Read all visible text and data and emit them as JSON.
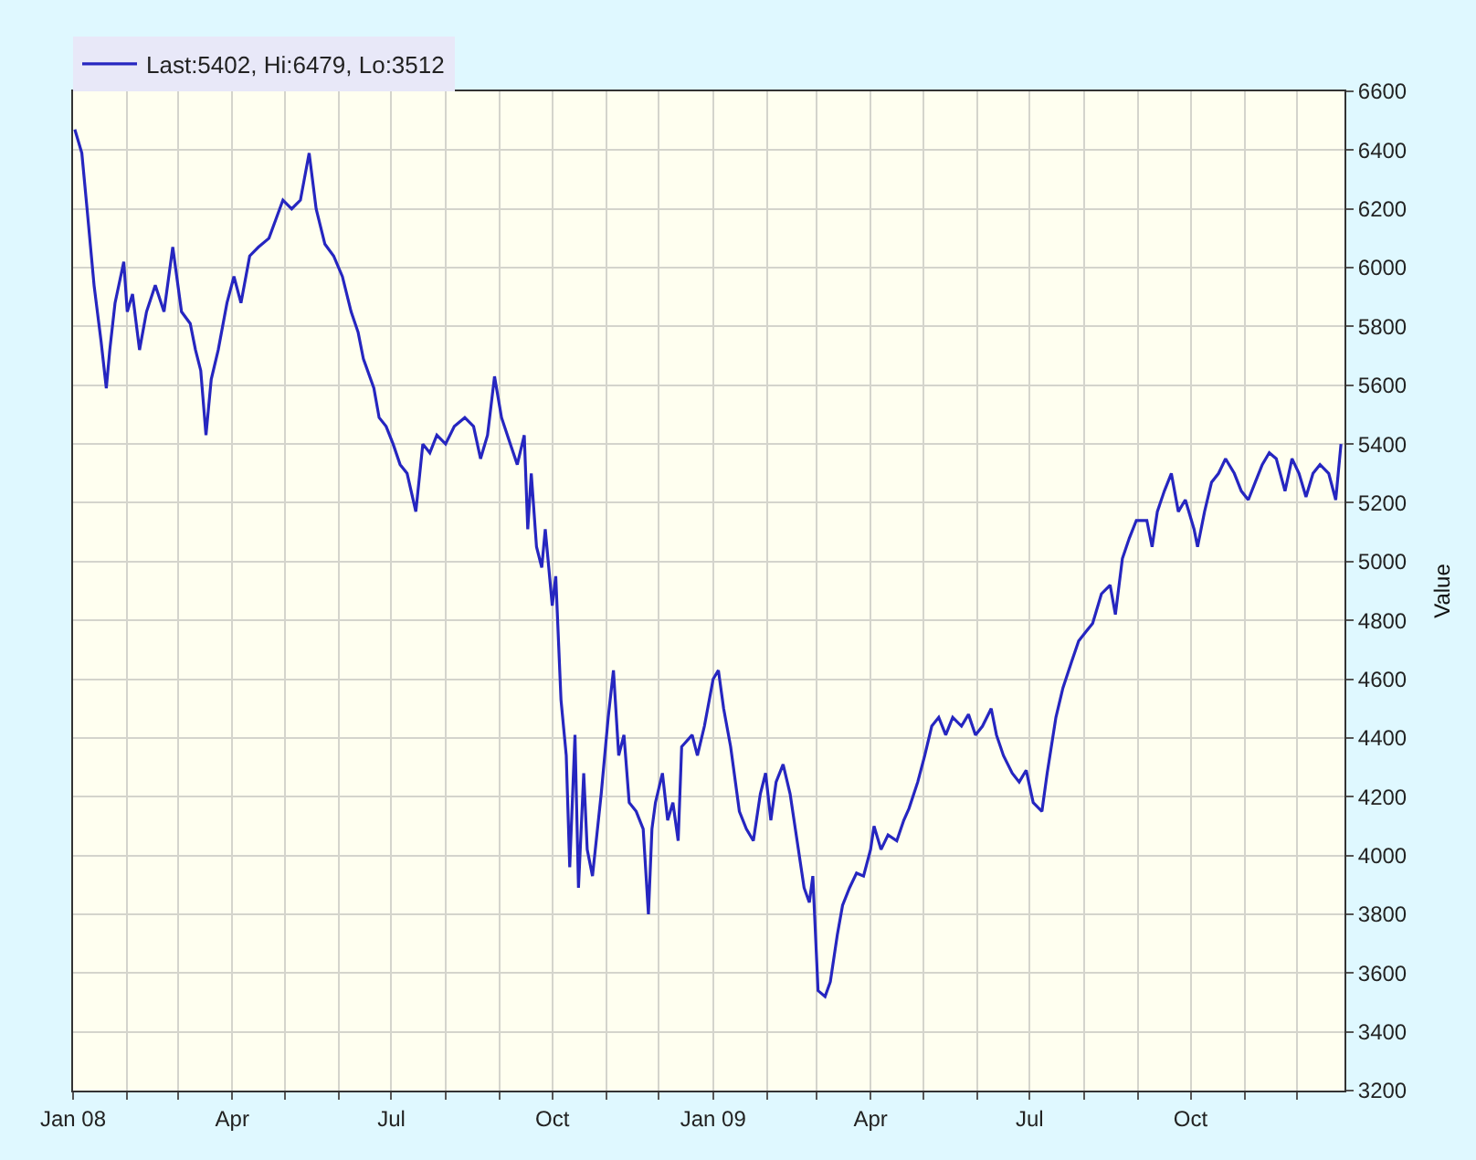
{
  "chart_data": {
    "type": "line",
    "ylabel": "Value",
    "legend": "top left",
    "grid": true,
    "marker": "none",
    "line_style": "solid",
    "xlim": [
      "2008-01-01",
      "2009-12-28"
    ],
    "ylim": [
      3200,
      6600
    ],
    "xticks": [
      {
        "value": "2008-01-01",
        "label": "Jan 08"
      },
      {
        "value": "2008-02-01",
        "label": null
      },
      {
        "value": "2008-03-01",
        "label": null
      },
      {
        "value": "2008-04-01",
        "label": "Apr"
      },
      {
        "value": "2008-05-01",
        "label": null
      },
      {
        "value": "2008-06-01",
        "label": null
      },
      {
        "value": "2008-07-01",
        "label": "Jul"
      },
      {
        "value": "2008-08-01",
        "label": null
      },
      {
        "value": "2008-09-01",
        "label": null
      },
      {
        "value": "2008-10-01",
        "label": "Oct"
      },
      {
        "value": "2008-11-01",
        "label": null
      },
      {
        "value": "2008-12-01",
        "label": null
      },
      {
        "value": "2009-01-01",
        "label": "Jan 09"
      },
      {
        "value": "2009-02-01",
        "label": null
      },
      {
        "value": "2009-03-01",
        "label": null
      },
      {
        "value": "2009-04-01",
        "label": "Apr"
      },
      {
        "value": "2009-05-01",
        "label": null
      },
      {
        "value": "2009-06-01",
        "label": null
      },
      {
        "value": "2009-07-01",
        "label": "Jul"
      },
      {
        "value": "2009-08-01",
        "label": null
      },
      {
        "value": "2009-09-01",
        "label": null
      },
      {
        "value": "2009-10-01",
        "label": "Oct"
      },
      {
        "value": "2009-11-01",
        "label": null
      },
      {
        "value": "2009-12-01",
        "label": null
      }
    ],
    "yticks": [
      3200,
      3400,
      3600,
      3800,
      4000,
      4200,
      4400,
      4600,
      4800,
      5000,
      5200,
      5400,
      5600,
      5800,
      6000,
      6200,
      6400,
      6600
    ],
    "x": [
      "2008-01-02",
      "2008-01-06",
      "2008-01-09",
      "2008-01-13",
      "2008-01-17",
      "2008-01-20",
      "2008-01-22",
      "2008-01-25",
      "2008-01-30",
      "2008-02-01",
      "2008-02-04",
      "2008-02-08",
      "2008-02-12",
      "2008-02-17",
      "2008-02-22",
      "2008-02-27",
      "2008-03-03",
      "2008-03-08",
      "2008-03-11",
      "2008-03-14",
      "2008-03-17",
      "2008-03-20",
      "2008-03-24",
      "2008-03-29",
      "2008-04-02",
      "2008-04-06",
      "2008-04-11",
      "2008-04-16",
      "2008-04-22",
      "2008-04-30",
      "2008-05-05",
      "2008-05-10",
      "2008-05-15",
      "2008-05-19",
      "2008-05-24",
      "2008-05-29",
      "2008-06-03",
      "2008-06-08",
      "2008-06-12",
      "2008-06-15",
      "2008-06-21",
      "2008-06-24",
      "2008-06-28",
      "2008-07-02",
      "2008-07-06",
      "2008-07-10",
      "2008-07-15",
      "2008-07-19",
      "2008-07-23",
      "2008-07-27",
      "2008-08-01",
      "2008-08-06",
      "2008-08-12",
      "2008-08-17",
      "2008-08-21",
      "2008-08-25",
      "2008-08-29",
      "2008-09-02",
      "2008-09-07",
      "2008-09-11",
      "2008-09-15",
      "2008-09-17",
      "2008-09-19",
      "2008-09-22",
      "2008-09-25",
      "2008-09-27",
      "2008-10-01",
      "2008-10-03",
      "2008-10-06",
      "2008-10-09",
      "2008-10-11",
      "2008-10-14",
      "2008-10-16",
      "2008-10-19",
      "2008-10-21",
      "2008-10-24",
      "2008-10-29",
      "2008-11-02",
      "2008-11-05",
      "2008-11-08",
      "2008-11-11",
      "2008-11-14",
      "2008-11-18",
      "2008-11-22",
      "2008-11-25",
      "2008-11-27",
      "2008-11-29",
      "2008-12-03",
      "2008-12-06",
      "2008-12-09",
      "2008-12-12",
      "2008-12-14",
      "2008-12-20",
      "2008-12-23",
      "2008-12-27",
      "2009-01-01",
      "2009-01-04",
      "2009-01-07",
      "2009-01-11",
      "2009-01-16",
      "2009-01-20",
      "2009-01-24",
      "2009-01-28",
      "2009-01-31",
      "2009-02-03",
      "2009-02-06",
      "2009-02-10",
      "2009-02-14",
      "2009-02-18",
      "2009-02-22",
      "2009-02-25",
      "2009-02-27",
      "2009-03-02",
      "2009-03-06",
      "2009-03-09",
      "2009-03-13",
      "2009-03-16",
      "2009-03-20",
      "2009-03-24",
      "2009-03-28",
      "2009-04-01",
      "2009-04-03",
      "2009-04-07",
      "2009-04-11",
      "2009-04-16",
      "2009-04-20",
      "2009-04-23",
      "2009-04-28",
      "2009-05-02",
      "2009-05-06",
      "2009-05-10",
      "2009-05-14",
      "2009-05-18",
      "2009-05-23",
      "2009-05-27",
      "2009-05-31",
      "2009-06-04",
      "2009-06-09",
      "2009-06-12",
      "2009-06-16",
      "2009-06-21",
      "2009-06-25",
      "2009-06-29",
      "2009-07-03",
      "2009-07-08",
      "2009-07-11",
      "2009-07-16",
      "2009-07-20",
      "2009-07-25",
      "2009-07-29",
      "2009-08-02",
      "2009-08-06",
      "2009-08-11",
      "2009-08-16",
      "2009-08-19",
      "2009-08-23",
      "2009-08-27",
      "2009-08-31",
      "2009-09-06",
      "2009-09-09",
      "2009-09-12",
      "2009-09-16",
      "2009-09-20",
      "2009-09-24",
      "2009-09-28",
      "2009-10-03",
      "2009-10-05",
      "2009-10-09",
      "2009-10-13",
      "2009-10-17",
      "2009-10-21",
      "2009-10-26",
      "2009-10-30",
      "2009-11-03",
      "2009-11-07",
      "2009-11-11",
      "2009-11-15",
      "2009-11-19",
      "2009-11-24",
      "2009-11-28",
      "2009-12-02",
      "2009-12-06",
      "2009-12-10",
      "2009-12-14",
      "2009-12-19",
      "2009-12-23",
      "2009-12-26"
    ],
    "series": [
      {
        "name": "Last:5402, Hi:6479, Lo:3512",
        "color": "#2626c0",
        "values": [
          6470,
          6390,
          6200,
          5940,
          5750,
          5590,
          5720,
          5880,
          6020,
          5850,
          5910,
          5720,
          5850,
          5940,
          5850,
          6070,
          5850,
          5810,
          5720,
          5650,
          5430,
          5620,
          5720,
          5880,
          5970,
          5880,
          6040,
          6070,
          6100,
          6230,
          6200,
          6230,
          6390,
          6200,
          6080,
          6040,
          5970,
          5850,
          5780,
          5690,
          5590,
          5490,
          5460,
          5400,
          5330,
          5300,
          5170,
          5400,
          5370,
          5430,
          5400,
          5460,
          5490,
          5460,
          5350,
          5430,
          5630,
          5490,
          5400,
          5330,
          5430,
          5110,
          5300,
          5050,
          4980,
          5110,
          4850,
          4950,
          4530,
          4340,
          3960,
          4410,
          3890,
          4280,
          4020,
          3930,
          4210,
          4470,
          4630,
          4340,
          4410,
          4180,
          4150,
          4090,
          3800,
          4090,
          4180,
          4280,
          4120,
          4180,
          4050,
          4370,
          4410,
          4340,
          4440,
          4600,
          4630,
          4500,
          4370,
          4150,
          4090,
          4050,
          4210,
          4280,
          4120,
          4250,
          4310,
          4210,
          4050,
          3890,
          3840,
          3930,
          3540,
          3520,
          3570,
          3730,
          3830,
          3890,
          3940,
          3930,
          4020,
          4100,
          4020,
          4070,
          4050,
          4120,
          4160,
          4250,
          4340,
          4440,
          4470,
          4410,
          4470,
          4440,
          4480,
          4410,
          4440,
          4500,
          4410,
          4340,
          4280,
          4250,
          4290,
          4180,
          4150,
          4280,
          4470,
          4570,
          4660,
          4730,
          4760,
          4790,
          4890,
          4920,
          4820,
          5010,
          5080,
          5140,
          5140,
          5050,
          5170,
          5240,
          5300,
          5170,
          5210,
          5110,
          5050,
          5170,
          5270,
          5300,
          5350,
          5300,
          5240,
          5210,
          5270,
          5330,
          5370,
          5350,
          5240,
          5350,
          5300,
          5220,
          5300,
          5330,
          5300,
          5210,
          5400
        ]
      }
    ]
  }
}
